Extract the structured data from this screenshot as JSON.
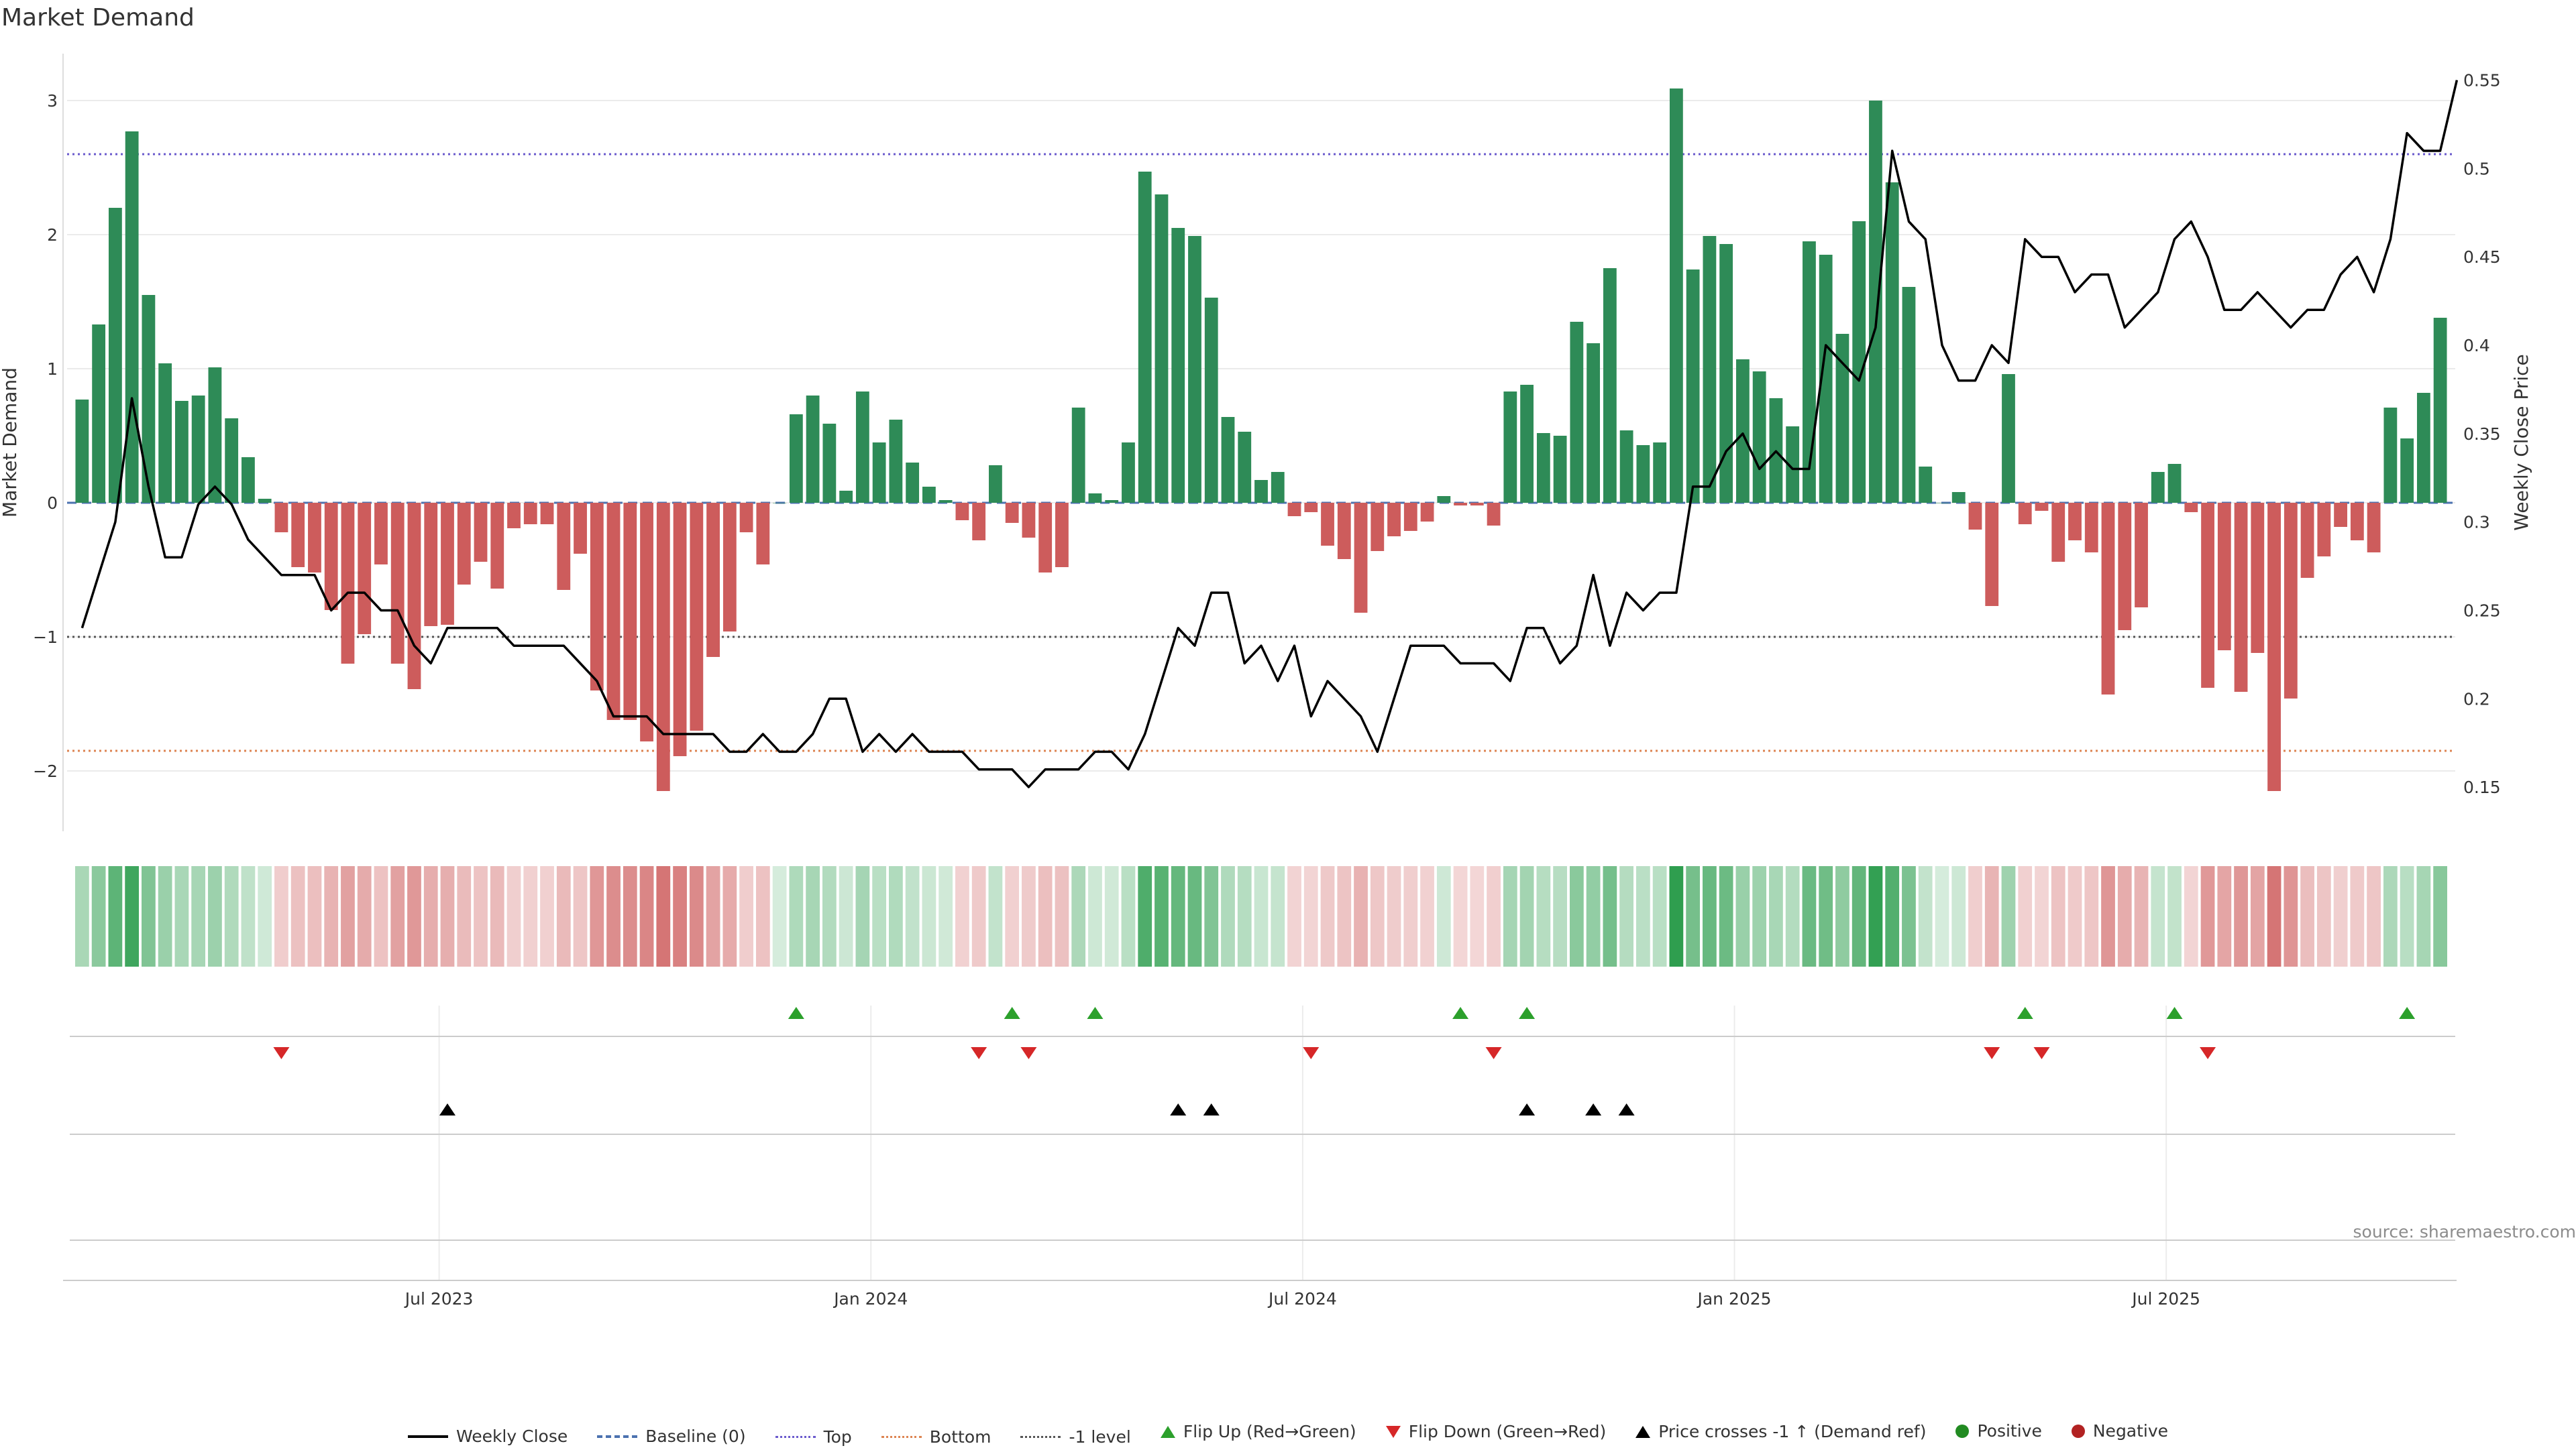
{
  "chart_data": {
    "type": "bar",
    "title": "Market Demand",
    "ylabel": "Market Demand",
    "y2label": "Weekly Close Price",
    "ylim": [
      -2.45,
      3.35
    ],
    "y2lim": [
      0.125,
      0.565
    ],
    "yticks": [
      -2,
      -1,
      0,
      1,
      2,
      3
    ],
    "yticklabels": [
      "−2",
      "−1",
      "0",
      "1",
      "2",
      "3"
    ],
    "y2ticks": [
      0.15,
      0.2,
      0.25,
      0.3,
      0.35,
      0.4,
      0.45,
      0.5,
      0.55
    ],
    "y2ticklabels": [
      "0.15",
      "0.2",
      "0.25",
      "0.3",
      "0.35",
      "0.4",
      "0.45",
      "0.5",
      "0.55"
    ],
    "xtick_labels": [
      "Jul 2023",
      "Jan 2024",
      "Jul 2024",
      "Jan 2025",
      "Jul 2025"
    ],
    "xtick_index": [
      21.5,
      47.5,
      73.5,
      99.5,
      125.5
    ],
    "reference_lines": {
      "top": 2.6,
      "bottom": -1.85,
      "minus_one": -1,
      "baseline": 0
    },
    "series": [
      {
        "name": "Market Demand",
        "values": [
          0.77,
          1.33,
          2.2,
          2.77,
          1.55,
          1.04,
          0.76,
          0.8,
          1.01,
          0.63,
          0.34,
          0.03,
          -0.22,
          -0.48,
          -0.52,
          -0.8,
          -1.2,
          -0.98,
          -0.46,
          -1.2,
          -1.39,
          -0.92,
          -0.91,
          -0.61,
          -0.44,
          -0.64,
          -0.19,
          -0.16,
          -0.16,
          -0.65,
          -0.38,
          -1.4,
          -1.62,
          -1.62,
          -1.78,
          -2.15,
          -1.89,
          -1.7,
          -1.15,
          -0.96,
          -0.22,
          -0.46,
          0,
          0.66,
          0.8,
          0.59,
          0.09,
          0.83,
          0.45,
          0.62,
          0.3,
          0.12,
          0.02,
          -0.13,
          -0.28,
          0.28,
          -0.15,
          -0.26,
          -0.52,
          -0.48,
          0.71,
          0.07,
          0.02,
          0.45,
          2.47,
          2.3,
          2.05,
          1.99,
          1.53,
          0.64,
          0.53,
          0.17,
          0.23,
          -0.1,
          -0.07,
          -0.32,
          -0.42,
          -0.82,
          -0.36,
          -0.25,
          -0.21,
          -0.14,
          0.05,
          -0.02,
          -0.02,
          -0.17,
          0.83,
          0.88,
          0.52,
          0.5,
          1.35,
          1.19,
          1.75,
          0.54,
          0.43,
          0.45,
          3.09,
          1.74,
          1.99,
          1.93,
          1.07,
          0.98,
          0.78,
          0.57,
          1.95,
          1.85,
          1.26,
          2.1,
          3.0,
          2.39,
          1.61,
          0.27,
          0,
          0.08,
          -0.2,
          -0.77,
          0.96,
          -0.16,
          -0.06,
          -0.44,
          -0.28,
          -0.37,
          -1.43,
          -0.95,
          -0.78,
          0.23,
          0.29,
          -0.07,
          -1.38,
          -1.1,
          -1.41,
          -1.12,
          -2.15,
          -1.46,
          -0.56,
          -0.4,
          -0.18,
          -0.28,
          -0.37,
          0.71,
          0.48,
          0.82,
          1.38
        ]
      },
      {
        "name": "Weekly Close",
        "values": [
          0.24,
          0.27,
          0.3,
          0.37,
          0.32,
          0.28,
          0.28,
          0.31,
          0.32,
          0.31,
          0.29,
          0.28,
          0.27,
          0.27,
          0.27,
          0.25,
          0.26,
          0.26,
          0.25,
          0.25,
          0.23,
          0.22,
          0.24,
          0.24,
          0.24,
          0.24,
          0.23,
          0.23,
          0.23,
          0.23,
          0.22,
          0.21,
          0.19,
          0.19,
          0.19,
          0.18,
          0.18,
          0.18,
          0.18,
          0.17,
          0.17,
          0.18,
          0.17,
          0.17,
          0.18,
          0.2,
          0.2,
          0.17,
          0.18,
          0.17,
          0.18,
          0.17,
          0.17,
          0.17,
          0.16,
          0.16,
          0.16,
          0.15,
          0.16,
          0.16,
          0.16,
          0.17,
          0.17,
          0.16,
          0.18,
          0.21,
          0.24,
          0.23,
          0.26,
          0.26,
          0.22,
          0.23,
          0.21,
          0.23,
          0.19,
          0.21,
          0.2,
          0.19,
          0.17,
          0.2,
          0.23,
          0.23,
          0.23,
          0.22,
          0.22,
          0.22,
          0.21,
          0.24,
          0.24,
          0.22,
          0.23,
          0.27,
          0.23,
          0.26,
          0.25,
          0.26,
          0.26,
          0.32,
          0.32,
          0.34,
          0.35,
          0.33,
          0.34,
          0.33,
          0.33,
          0.4,
          0.39,
          0.38,
          0.41,
          0.51,
          0.47,
          0.46,
          0.4,
          0.38,
          0.38,
          0.4,
          0.39,
          0.46,
          0.45,
          0.45,
          0.43,
          0.44,
          0.44,
          0.41,
          0.42,
          0.43,
          0.46,
          0.47,
          0.45,
          0.42,
          0.42,
          0.43,
          0.42,
          0.41,
          0.42,
          0.42,
          0.44,
          0.45,
          0.43,
          0.46,
          0.52,
          0.51,
          0.51,
          0.55
        ]
      }
    ],
    "events": {
      "flip_up": [
        43,
        56,
        61,
        83,
        87,
        117,
        126,
        140
      ],
      "flip_down": [
        12,
        54,
        57,
        74,
        85,
        115,
        118,
        128
      ],
      "price_cross": [
        22,
        66,
        68,
        87,
        91,
        93
      ]
    },
    "legend_placement": "bottom-center"
  },
  "legend": [
    {
      "label": "Weekly Close",
      "swatch": "sw-line"
    },
    {
      "label": "Baseline (0)",
      "swatch": "sw-dash"
    },
    {
      "label": "Top",
      "swatch": "sw-dot-purple"
    },
    {
      "label": "Bottom",
      "swatch": "sw-dot-orange"
    },
    {
      "label": "-1 level",
      "swatch": "sw-dot-grey"
    },
    {
      "label": "Flip Up (Red→Green)",
      "swatch": "sw-tri-up"
    },
    {
      "label": "Flip Down (Green→Red)",
      "swatch": "sw-tri-down"
    },
    {
      "label": "Price crosses -1 ↑ (Demand ref)",
      "swatch": "sw-tri-black"
    },
    {
      "label": "Positive",
      "swatch": "sw-circ-green"
    },
    {
      "label": "Negative",
      "swatch": "sw-circ-red"
    }
  ],
  "source": "source: sharemaestro.com",
  "colors": {
    "positive": "#2e8b57",
    "negative": "#cd5c5c",
    "price": "#000000",
    "flip_up": "#2ca02c",
    "flip_down": "#d62728",
    "top": "#6a5acd",
    "bottom": "#dd8452",
    "baseline": "#4c72b0",
    "minus_one": "#555555"
  }
}
